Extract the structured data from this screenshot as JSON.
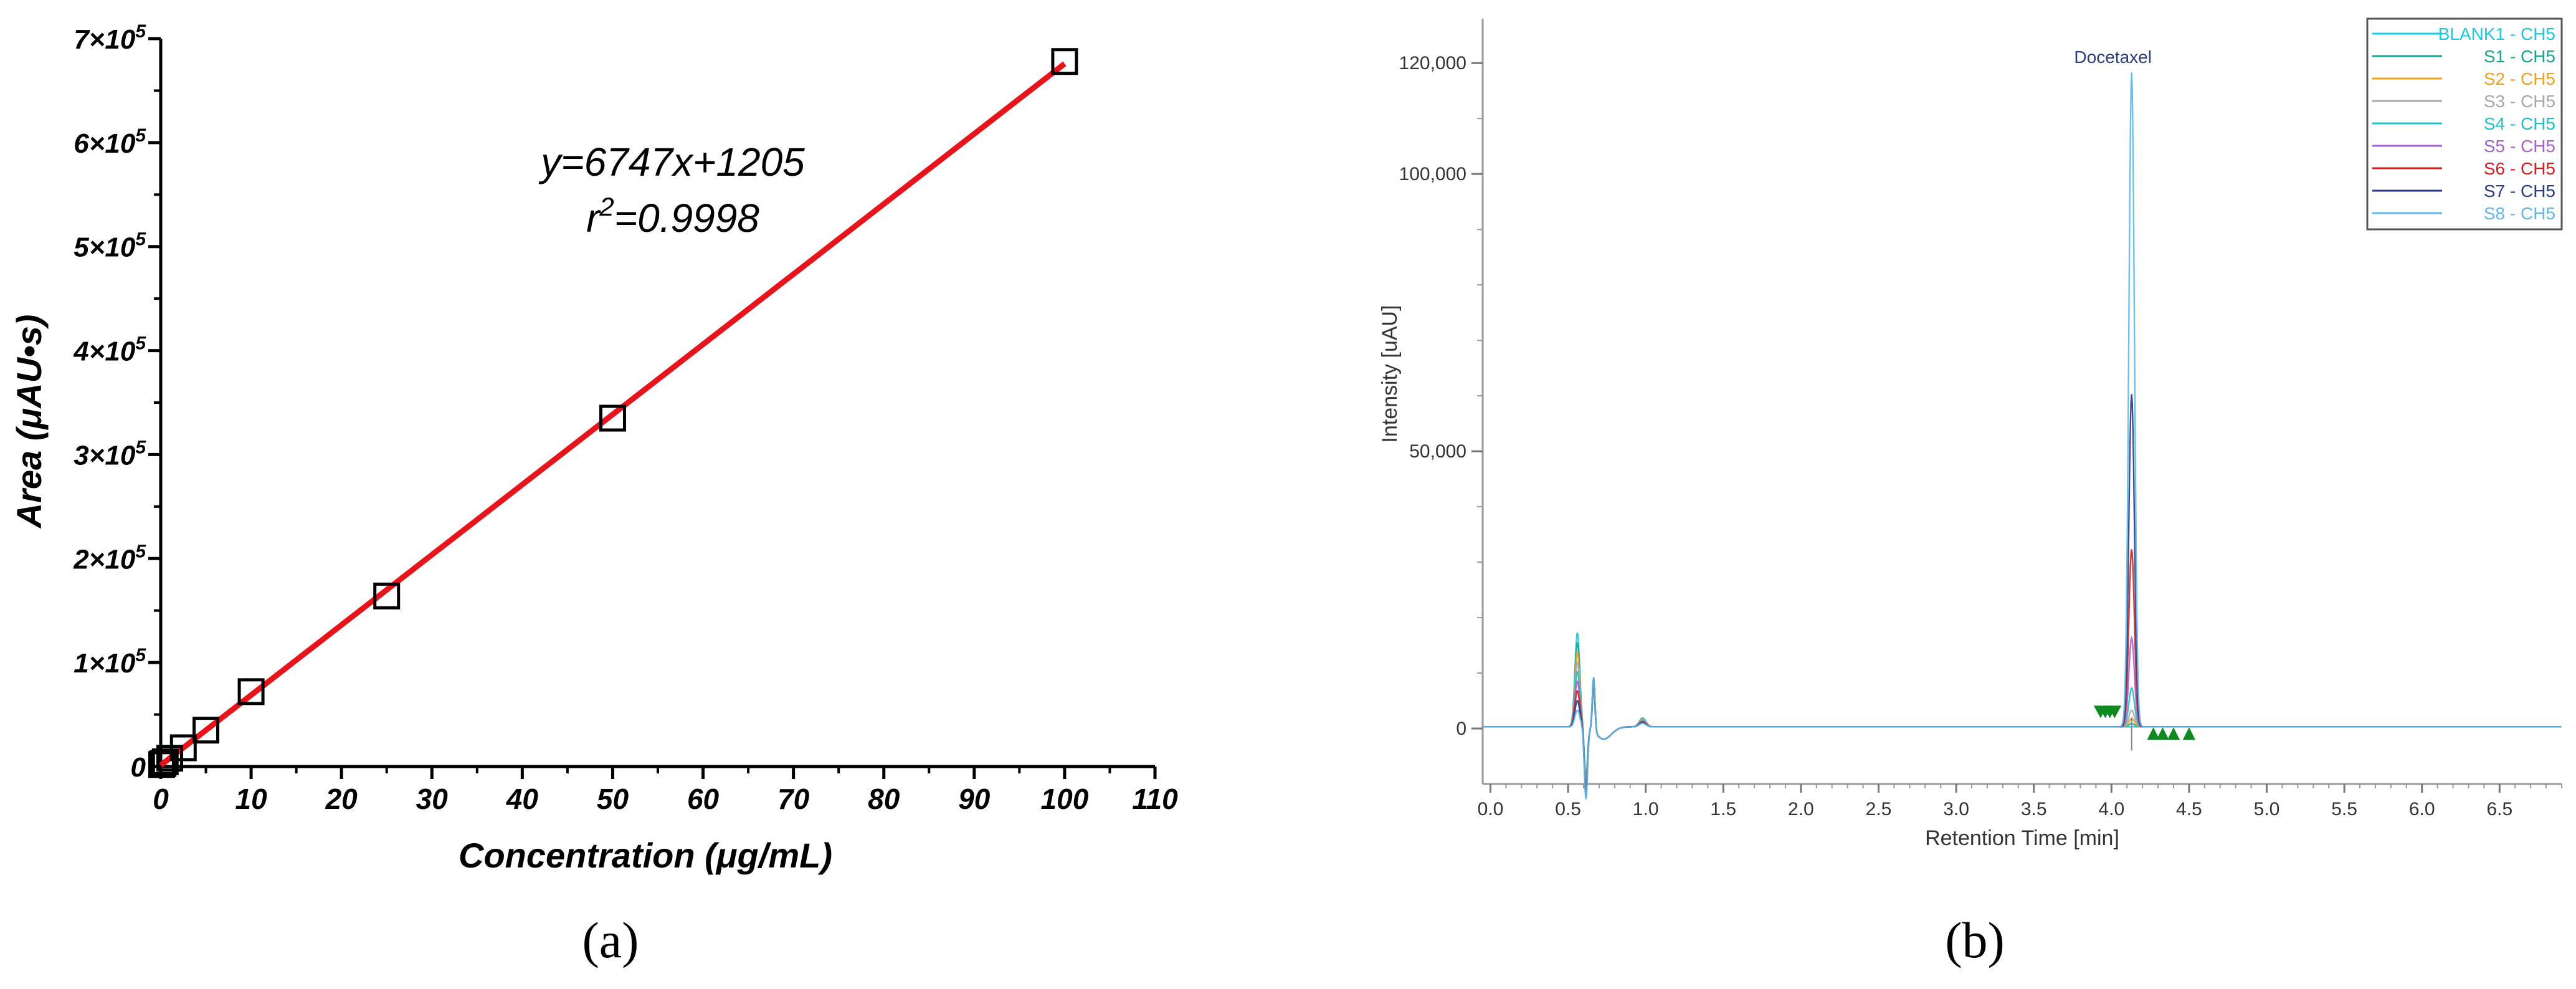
{
  "chart_data": [
    {
      "panel": "(a)",
      "type": "scatter",
      "xlabel": "Concentration (μg/mL)",
      "ylabel": "Area (μAU•s)",
      "xlim": [
        0,
        110
      ],
      "ylim": [
        0,
        700000
      ],
      "x_ticks": [
        0,
        10,
        20,
        30,
        40,
        50,
        60,
        70,
        80,
        90,
        100,
        110
      ],
      "y_ticks": [
        {
          "value": 0,
          "mantissa": "0",
          "exp": ""
        },
        {
          "value": 100000,
          "mantissa": "1×10",
          "exp": "5"
        },
        {
          "value": 200000,
          "mantissa": "2×10",
          "exp": "5"
        },
        {
          "value": 300000,
          "mantissa": "3×10",
          "exp": "5"
        },
        {
          "value": 400000,
          "mantissa": "4×10",
          "exp": "5"
        },
        {
          "value": 500000,
          "mantissa": "5×10",
          "exp": "5"
        },
        {
          "value": 600000,
          "mantissa": "6×10",
          "exp": "5"
        },
        {
          "value": 700000,
          "mantissa": "7×10",
          "exp": "5"
        }
      ],
      "points": [
        {
          "x": 0.1,
          "y": 1900
        },
        {
          "x": 0.25,
          "y": 2900
        },
        {
          "x": 0.5,
          "y": 4600
        },
        {
          "x": 1,
          "y": 8000
        },
        {
          "x": 2.5,
          "y": 18000
        },
        {
          "x": 5,
          "y": 35000
        },
        {
          "x": 10,
          "y": 72000
        },
        {
          "x": 25,
          "y": 164000
        },
        {
          "x": 50,
          "y": 335000
        },
        {
          "x": 100,
          "y": 678000
        }
      ],
      "fit": {
        "slope": 6747,
        "intercept": 1205,
        "x_range": [
          0,
          100
        ],
        "color": "#e8141c"
      },
      "equation": "y=6747x+1205",
      "r2_base": "r",
      "r2_sup": "2",
      "r2_value": "=0.9998",
      "grid": false
    },
    {
      "panel": "(b)",
      "type": "line",
      "xlabel": "Retention Time [min]",
      "ylabel": "Intensity [uAU]",
      "xlim": [
        -0.05,
        6.9
      ],
      "ylim": [
        -10000,
        128000
      ],
      "x_ticks": [
        "0.0",
        "0.5",
        "1.0",
        "1.5",
        "2.0",
        "2.5",
        "3.0",
        "3.5",
        "4.0",
        "4.5",
        "5.0",
        "5.5",
        "6.0",
        "6.5"
      ],
      "y_ticks": [
        {
          "value": 0,
          "label": "0"
        },
        {
          "value": 50000,
          "label": "50,000"
        },
        {
          "value": 100000,
          "label": "100,000"
        },
        {
          "value": 120000,
          "label": "120,000"
        }
      ],
      "y_minor_ticks": [
        10000,
        20000,
        30000,
        40000,
        60000,
        70000,
        80000,
        90000,
        110000
      ],
      "peak_label": "Docetaxel",
      "peak_rt": 4.13,
      "legend_position": "top-right",
      "series": [
        {
          "name": "BLANK1 - CH5",
          "color": "#1ec8dc",
          "peak": 0
        },
        {
          "name": "S1 - CH5",
          "color": "#18a890",
          "peak": 600
        },
        {
          "name": "S2 - CH5",
          "color": "#f0a020",
          "peak": 1500
        },
        {
          "name": "S3 - CH5",
          "color": "#a8a8a8",
          "peak": 3000
        },
        {
          "name": "S4 - CH5",
          "color": "#20c0c8",
          "peak": 7000
        },
        {
          "name": "S5 - CH5",
          "color": "#a860d0",
          "peak": 16000
        },
        {
          "name": "S6 - CH5",
          "color": "#d02020",
          "peak": 32000
        },
        {
          "name": "S7 - CH5",
          "color": "#283c80",
          "peak": 60000
        },
        {
          "name": "S8 - CH5",
          "color": "#60b8e8",
          "peak": 118000
        }
      ],
      "integration_markers_start": [
        3.93,
        3.96,
        3.99,
        4.02
      ],
      "integration_markers_end": [
        4.27,
        4.33,
        4.4,
        4.5
      ],
      "marker_color": "#108a20",
      "grid": false
    }
  ]
}
